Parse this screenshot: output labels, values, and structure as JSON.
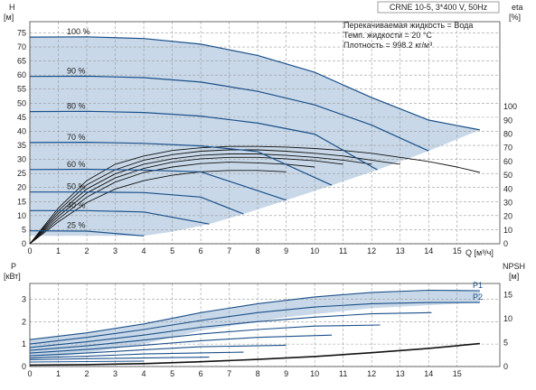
{
  "header": {
    "title": "CRNE 10-5, 3*400 V, 50Hz",
    "liquid": "Перекачиваемая жидкость = Вода",
    "temperature": "Темп. жидкости = 20 °C",
    "density": "Плотность = 998.2 кг/м³"
  },
  "axes": {
    "top_left_label": "H",
    "top_left_unit": "[м]",
    "top_right_label": "eta",
    "top_right_unit": "[%]",
    "x_label": "Q [м³/ч]",
    "bottom_left_label": "P",
    "bottom_left_unit": "[кВт]",
    "bottom_right_label": "NPSH",
    "bottom_right_unit": "[м]"
  },
  "colors": {
    "envelope_fill": "#c8d8e8",
    "curve": "#1a4f8a",
    "efficiency_curve": "#111111",
    "grid": "#9a9a9a"
  },
  "chart_data": [
    {
      "type": "line",
      "panel": "QH and efficiency",
      "x_ticks": [
        0,
        1,
        2,
        3,
        4,
        5,
        6,
        7,
        8,
        9,
        10,
        11,
        12,
        13,
        14,
        15
      ],
      "y_ticks_left": [
        0,
        5,
        10,
        15,
        20,
        25,
        30,
        35,
        40,
        45,
        50,
        55,
        60,
        65,
        70,
        75
      ],
      "y_ticks_right": [
        0,
        10,
        20,
        30,
        40,
        50,
        60,
        70,
        80,
        90,
        100
      ],
      "xlim": [
        0,
        16.5
      ],
      "ylim_left": [
        0,
        79
      ],
      "ylim_right": [
        0,
        162
      ],
      "grid": true,
      "operating_range": [
        [
          0,
          73.5
        ],
        [
          2,
          73.6
        ],
        [
          4,
          73
        ],
        [
          6,
          71
        ],
        [
          8,
          67
        ],
        [
          10,
          61
        ],
        [
          12,
          52
        ],
        [
          14,
          44
        ],
        [
          15.8,
          40.5
        ],
        [
          14,
          33
        ],
        [
          12.2,
          26.3
        ],
        [
          10.6,
          20.8
        ],
        [
          9,
          15.5
        ],
        [
          7.5,
          10.6
        ],
        [
          6.3,
          7
        ],
        [
          5,
          4.3
        ],
        [
          4,
          2.8
        ],
        [
          0,
          2.8
        ]
      ],
      "speed_curves": [
        {
          "label": "100 %",
          "points": [
            [
              0,
              73.5
            ],
            [
              2,
              73.6
            ],
            [
              4,
              73
            ],
            [
              6,
              71
            ],
            [
              8,
              67
            ],
            [
              10,
              61
            ],
            [
              12,
              52
            ],
            [
              14,
              44
            ],
            [
              15.8,
              40.5
            ]
          ]
        },
        {
          "label": "90 %",
          "points": [
            [
              0,
              59.5
            ],
            [
              2,
              59.6
            ],
            [
              4,
              59.1
            ],
            [
              6,
              57.5
            ],
            [
              8,
              54.2
            ],
            [
              10,
              49.4
            ],
            [
              12,
              42.2
            ],
            [
              14,
              33
            ]
          ]
        },
        {
          "label": "80 %",
          "points": [
            [
              0,
              47
            ],
            [
              2,
              47.1
            ],
            [
              4,
              46.7
            ],
            [
              6,
              45.4
            ],
            [
              8,
              42.9
            ],
            [
              10,
              39
            ],
            [
              12.2,
              26.3
            ]
          ]
        },
        {
          "label": "70 %",
          "points": [
            [
              0,
              36
            ],
            [
              2,
              36.1
            ],
            [
              4,
              35.7
            ],
            [
              6,
              34.8
            ],
            [
              8,
              32.8
            ],
            [
              10.6,
              20.8
            ]
          ]
        },
        {
          "label": "60 %",
          "points": [
            [
              0,
              26.4
            ],
            [
              2,
              26.5
            ],
            [
              4,
              26.2
            ],
            [
              6,
              25.6
            ],
            [
              9,
              15.5
            ]
          ]
        },
        {
          "label": "50 %",
          "points": [
            [
              0,
              18.4
            ],
            [
              2,
              18.4
            ],
            [
              4,
              18.2
            ],
            [
              6,
              16.6
            ],
            [
              7.5,
              10.6
            ]
          ]
        },
        {
          "label": "40 %",
          "points": [
            [
              0,
              11.8
            ],
            [
              2,
              11.8
            ],
            [
              4,
              11.3
            ],
            [
              6.3,
              7
            ]
          ]
        },
        {
          "label": "25 %",
          "points": [
            [
              0,
              4.6
            ],
            [
              2,
              4.5
            ],
            [
              4,
              2.8
            ]
          ]
        }
      ],
      "efficiency_curves": [
        {
          "points": [
            [
              0,
              0
            ],
            [
              1,
              16
            ],
            [
              2,
              30
            ],
            [
              3,
              40
            ],
            [
              4,
              46
            ],
            [
              5,
              50
            ],
            [
              6,
              52.5
            ],
            [
              7,
              53.5
            ],
            [
              8,
              53.5
            ],
            [
              9,
              52.5
            ]
          ]
        },
        {
          "points": [
            [
              0,
              0
            ],
            [
              1,
              18
            ],
            [
              2,
              34
            ],
            [
              3,
              45
            ],
            [
              4,
              52
            ],
            [
              5,
              56
            ],
            [
              6,
              58.5
            ],
            [
              7,
              59.5
            ],
            [
              8,
              59
            ],
            [
              9,
              58
            ],
            [
              10,
              56
            ]
          ]
        },
        {
          "points": [
            [
              0,
              0
            ],
            [
              1,
              20
            ],
            [
              2,
              37
            ],
            [
              3,
              48
            ],
            [
              4,
              55
            ],
            [
              5,
              59.5
            ],
            [
              6,
              62
            ],
            [
              7,
              63
            ],
            [
              8,
              63
            ],
            [
              9,
              62
            ],
            [
              10,
              60.5
            ],
            [
              11,
              58
            ]
          ]
        },
        {
          "points": [
            [
              0,
              0
            ],
            [
              1,
              22
            ],
            [
              2,
              40
            ],
            [
              3,
              51
            ],
            [
              4,
              58
            ],
            [
              5,
              62
            ],
            [
              6,
              64.5
            ],
            [
              7,
              65.5
            ],
            [
              8,
              65.5
            ],
            [
              9,
              64.5
            ],
            [
              10,
              63
            ],
            [
              11,
              61
            ],
            [
              12,
              58
            ]
          ]
        },
        {
          "points": [
            [
              0,
              0
            ],
            [
              1,
              24
            ],
            [
              2,
              43
            ],
            [
              3,
              54
            ],
            [
              4,
              61
            ],
            [
              5,
              65
            ],
            [
              6,
              67.5
            ],
            [
              7,
              68.5
            ],
            [
              8,
              68.5
            ],
            [
              9,
              67.5
            ],
            [
              10,
              66
            ],
            [
              11,
              64
            ],
            [
              12,
              61
            ],
            [
              13,
              58
            ]
          ]
        },
        {
          "points": [
            [
              0,
              0
            ],
            [
              1,
              26
            ],
            [
              2,
              46
            ],
            [
              3,
              58
            ],
            [
              4,
              64
            ],
            [
              5,
              68
            ],
            [
              6,
              70
            ],
            [
              7,
              71
            ],
            [
              8,
              71
            ],
            [
              9,
              70.5
            ],
            [
              10,
              69.5
            ],
            [
              11,
              68
            ],
            [
              12,
              66
            ],
            [
              13,
              63
            ],
            [
              14,
              60
            ],
            [
              15,
              56
            ],
            [
              15.8,
              52
            ]
          ]
        }
      ]
    },
    {
      "type": "line",
      "panel": "power and NPSH",
      "x_ticks": [
        0,
        1,
        2,
        3,
        4,
        5,
        6,
        7,
        8,
        9,
        10,
        11,
        12,
        13,
        14,
        15
      ],
      "y_ticks_left": [
        0,
        1,
        2,
        3
      ],
      "y_ticks_right": [
        0,
        5,
        10,
        15
      ],
      "xlim": [
        0,
        16.5
      ],
      "ylim_left": [
        0,
        3.7
      ],
      "ylim_right": [
        0,
        17.4
      ],
      "grid": true,
      "operating_range": [
        [
          0,
          1.2
        ],
        [
          2,
          1.5
        ],
        [
          4,
          1.9
        ],
        [
          6,
          2.4
        ],
        [
          8,
          2.8
        ],
        [
          10,
          3.1
        ],
        [
          12,
          3.3
        ],
        [
          14,
          3.4
        ],
        [
          15.8,
          3.38
        ],
        [
          15.8,
          2.85
        ],
        [
          12,
          2.6
        ],
        [
          9,
          2.2
        ],
        [
          6,
          1.6
        ],
        [
          4,
          1
        ],
        [
          2,
          0.6
        ],
        [
          0,
          0.3
        ]
      ],
      "series": [
        {
          "name": "P1",
          "points": [
            [
              0,
              1.2
            ],
            [
              2,
              1.5
            ],
            [
              4,
              1.9
            ],
            [
              6,
              2.4
            ],
            [
              8,
              2.8
            ],
            [
              10,
              3.1
            ],
            [
              12,
              3.3
            ],
            [
              14,
              3.4
            ],
            [
              15.8,
              3.38
            ]
          ]
        },
        {
          "name": "P2",
          "points": [
            [
              0,
              1
            ],
            [
              2,
              1.3
            ],
            [
              4,
              1.65
            ],
            [
              6,
              2.05
            ],
            [
              8,
              2.4
            ],
            [
              10,
              2.65
            ],
            [
              12,
              2.8
            ],
            [
              14,
              2.85
            ],
            [
              15.8,
              2.85
            ]
          ]
        },
        {
          "points": [
            [
              0,
              0.85
            ],
            [
              2,
              1.1
            ],
            [
              4,
              1.4
            ],
            [
              6,
              1.75
            ],
            [
              8,
              2.0
            ],
            [
              10,
              2.2
            ],
            [
              12,
              2.35
            ],
            [
              14.1,
              2.4
            ]
          ]
        },
        {
          "points": [
            [
              0,
              0.72
            ],
            [
              2,
              0.92
            ],
            [
              4,
              1.18
            ],
            [
              6,
              1.45
            ],
            [
              8,
              1.65
            ],
            [
              10,
              1.8
            ],
            [
              12.3,
              1.85
            ]
          ]
        },
        {
          "points": [
            [
              0,
              0.6
            ],
            [
              2,
              0.76
            ],
            [
              4,
              0.95
            ],
            [
              6,
              1.15
            ],
            [
              8,
              1.3
            ],
            [
              10.6,
              1.4
            ]
          ]
        },
        {
          "points": [
            [
              0,
              0.48
            ],
            [
              2,
              0.6
            ],
            [
              4,
              0.75
            ],
            [
              6,
              0.88
            ],
            [
              9,
              0.95
            ]
          ]
        },
        {
          "points": [
            [
              0,
              0.38
            ],
            [
              2,
              0.46
            ],
            [
              4,
              0.56
            ],
            [
              7.5,
              0.64
            ]
          ]
        },
        {
          "points": [
            [
              0,
              0.3
            ],
            [
              2,
              0.35
            ],
            [
              6.3,
              0.42
            ]
          ]
        },
        {
          "points": [
            [
              0,
              0.2
            ],
            [
              4,
              0.24
            ]
          ]
        },
        {
          "name": "NPSH",
          "axis": "right",
          "color": "#111111",
          "points": [
            [
              0,
              0.3
            ],
            [
              2,
              0.4
            ],
            [
              4,
              0.6
            ],
            [
              6,
              1.0
            ],
            [
              8,
              1.5
            ],
            [
              10,
              2.1
            ],
            [
              12,
              2.9
            ],
            [
              14,
              3.8
            ],
            [
              15.8,
              4.8
            ]
          ]
        }
      ]
    }
  ]
}
